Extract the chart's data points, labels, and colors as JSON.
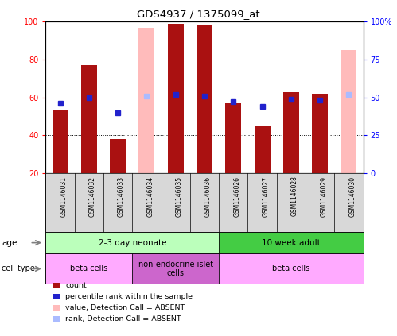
{
  "title": "GDS4937 / 1375099_at",
  "samples": [
    "GSM1146031",
    "GSM1146032",
    "GSM1146033",
    "GSM1146034",
    "GSM1146035",
    "GSM1146036",
    "GSM1146026",
    "GSM1146027",
    "GSM1146028",
    "GSM1146029",
    "GSM1146030"
  ],
  "absent": [
    false,
    false,
    false,
    true,
    false,
    false,
    false,
    false,
    false,
    false,
    true
  ],
  "bar_values": [
    53,
    77,
    38,
    97,
    99,
    98,
    57,
    45,
    63,
    62,
    85
  ],
  "rank_values": [
    46,
    50,
    40,
    51,
    52,
    51,
    47,
    44,
    49,
    48,
    52
  ],
  "ylim_left": [
    20,
    100
  ],
  "ylim_right": [
    0,
    100
  ],
  "yticks_left": [
    20,
    40,
    60,
    80,
    100
  ],
  "yticks_right": [
    0,
    25,
    50,
    75,
    100
  ],
  "ytick_labels_right": [
    "0",
    "25",
    "50",
    "75",
    "100%"
  ],
  "bar_color_present": "#aa1111",
  "bar_color_absent": "#ffbbbb",
  "rank_color_present": "#2222cc",
  "rank_color_absent": "#aabbff",
  "age_groups": [
    {
      "label": "2-3 day neonate",
      "start": 0,
      "end": 6,
      "color": "#bbffbb"
    },
    {
      "label": "10 week adult",
      "start": 6,
      "end": 11,
      "color": "#44cc44"
    }
  ],
  "cell_groups": [
    {
      "label": "beta cells",
      "start": 0,
      "end": 3,
      "color": "#ffaaff"
    },
    {
      "label": "non-endocrine islet\ncells",
      "start": 3,
      "end": 6,
      "color": "#cc66cc"
    },
    {
      "label": "beta cells",
      "start": 6,
      "end": 11,
      "color": "#ffaaff"
    }
  ],
  "legend_items": [
    {
      "color": "#aa1111",
      "label": "count"
    },
    {
      "color": "#2222cc",
      "label": "percentile rank within the sample"
    },
    {
      "color": "#ffbbbb",
      "label": "value, Detection Call = ABSENT"
    },
    {
      "color": "#aabbff",
      "label": "rank, Detection Call = ABSENT"
    }
  ],
  "background_color": "#ffffff"
}
